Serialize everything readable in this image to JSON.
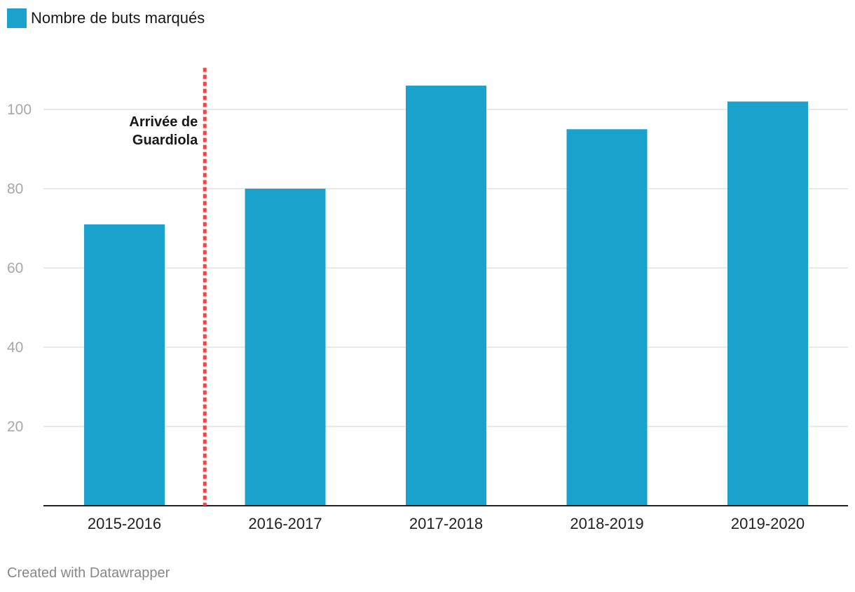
{
  "legend": {
    "label": "Nombre de buts marqués"
  },
  "colors": {
    "bar": "#1aa1cc",
    "annotation_line": "#f04545",
    "grid": "#e2e2e2",
    "axis": "#222222",
    "tick_text": "#a8a8a8",
    "category_text": "#222222"
  },
  "chart_data": {
    "type": "bar",
    "categories": [
      "2015-2016",
      "2016-2017",
      "2017-2018",
      "2018-2019",
      "2019-2020"
    ],
    "series": [
      {
        "name": "Nombre de buts marqués",
        "values": [
          71,
          80,
          106,
          95,
          102
        ]
      }
    ],
    "ylim": [
      0,
      110
    ],
    "yticks": [
      20,
      40,
      60,
      80,
      100
    ],
    "grid": true,
    "legend_position": "top-left",
    "annotation": {
      "lines": [
        "Arrivée de",
        "Guardiola"
      ],
      "between_categories": [
        "2015-2016",
        "2016-2017"
      ]
    }
  },
  "footer": {
    "credit": "Created with Datawrapper"
  }
}
